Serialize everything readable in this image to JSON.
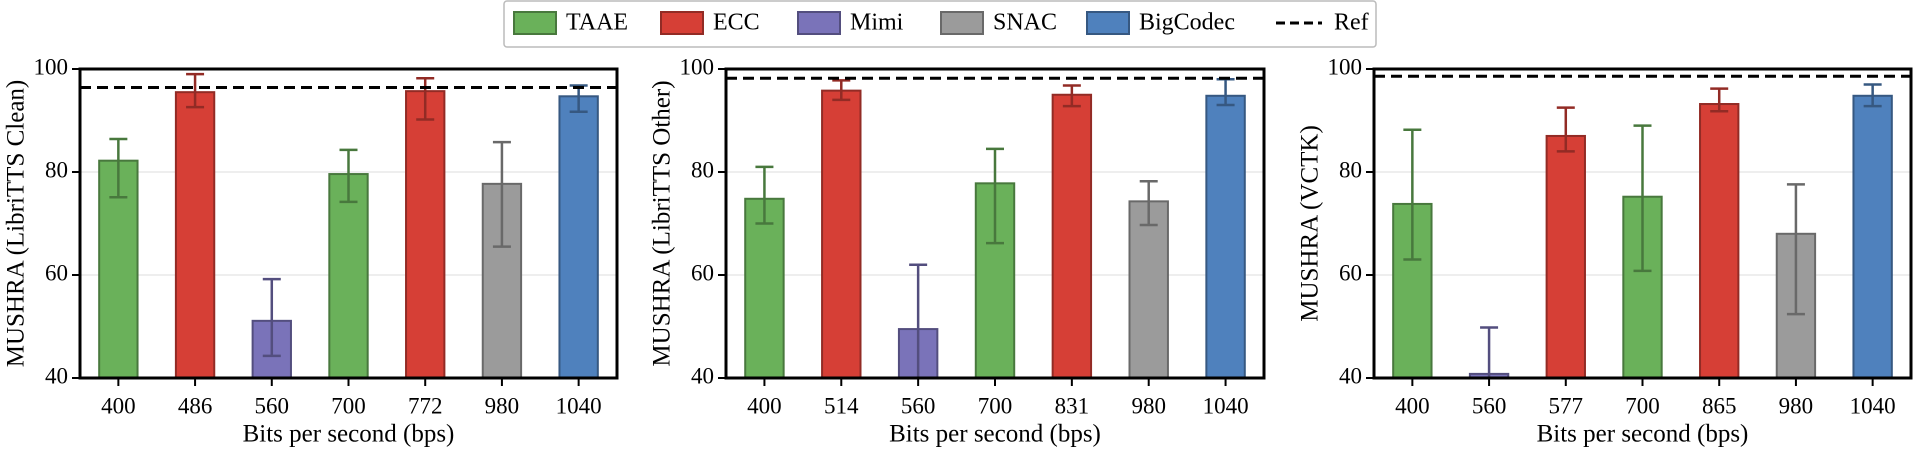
{
  "legend": {
    "entries": [
      {
        "name": "TAAE",
        "color": "#6ab15a"
      },
      {
        "name": "ECC",
        "color": "#d63f36"
      },
      {
        "name": "Mimi",
        "color": "#7a73b9"
      },
      {
        "name": "SNAC",
        "color": "#9b9b9b"
      },
      {
        "name": "BigCodec",
        "color": "#4f81bd"
      }
    ],
    "ref_label": "Ref",
    "ref_style": "dashed"
  },
  "chart_data": [
    {
      "type": "bar",
      "ylabel": "MUSHRA (LibriTTS Clean)",
      "xlabel": "Bits per second (bps)",
      "categories": [
        "400",
        "486",
        "560",
        "700",
        "772",
        "980",
        "1040"
      ],
      "values": [
        82.2,
        95.5,
        51.1,
        79.6,
        95.7,
        77.7,
        94.7
      ],
      "errors": [
        [
          75.1,
          86.4
        ],
        [
          92.6,
          99
        ],
        [
          44.3,
          59.2
        ],
        [
          74.2,
          84.3
        ],
        [
          90.2,
          98.2
        ],
        [
          65.5,
          85.8
        ],
        [
          91.7,
          96.8
        ]
      ],
      "colors": [
        "#6ab15a",
        "#d63f36",
        "#7a73b9",
        "#6ab15a",
        "#d63f36",
        "#9b9b9b",
        "#4f81bd"
      ],
      "ref": 96.4,
      "ylim": [
        40,
        100
      ],
      "yticks": [
        40,
        60,
        80,
        100
      ],
      "grid": true
    },
    {
      "type": "bar",
      "ylabel": "MUSHRA (LibriTTS Other)",
      "xlabel": "Bits per second (bps)",
      "categories": [
        "400",
        "514",
        "560",
        "700",
        "831",
        "980",
        "1040"
      ],
      "values": [
        74.8,
        95.8,
        49.5,
        77.8,
        95,
        74.3,
        94.8
      ],
      "errors": [
        [
          70,
          81
        ],
        [
          94,
          97.8
        ],
        [
          40,
          62
        ],
        [
          66.2,
          84.5
        ],
        [
          92.8,
          96.8
        ],
        [
          69.7,
          78.2
        ],
        [
          93,
          98
        ]
      ],
      "colors": [
        "#6ab15a",
        "#d63f36",
        "#7a73b9",
        "#6ab15a",
        "#d63f36",
        "#9b9b9b",
        "#4f81bd"
      ],
      "ref": 98.2,
      "ylim": [
        40,
        100
      ],
      "yticks": [
        40,
        60,
        80,
        100
      ],
      "grid": true
    },
    {
      "type": "bar",
      "ylabel": "MUSHRA (VCTK)",
      "xlabel": "Bits per second (bps)",
      "categories": [
        "400",
        "560",
        "577",
        "700",
        "865",
        "980",
        "1040"
      ],
      "values": [
        73.8,
        40.8,
        87,
        75.2,
        93.2,
        68,
        94.8
      ],
      "errors": [
        [
          63,
          88.2
        ],
        [
          40,
          49.8
        ],
        [
          84,
          92.5
        ],
        [
          60.8,
          89
        ],
        [
          91.8,
          96.2
        ],
        [
          52.4,
          77.6
        ],
        [
          92.8,
          97
        ]
      ],
      "colors": [
        "#6ab15a",
        "#7a73b9",
        "#d63f36",
        "#6ab15a",
        "#d63f36",
        "#9b9b9b",
        "#4f81bd"
      ],
      "ref": 98.6,
      "ylim": [
        40,
        100
      ],
      "yticks": [
        40,
        60,
        80,
        100
      ],
      "grid": true
    }
  ]
}
